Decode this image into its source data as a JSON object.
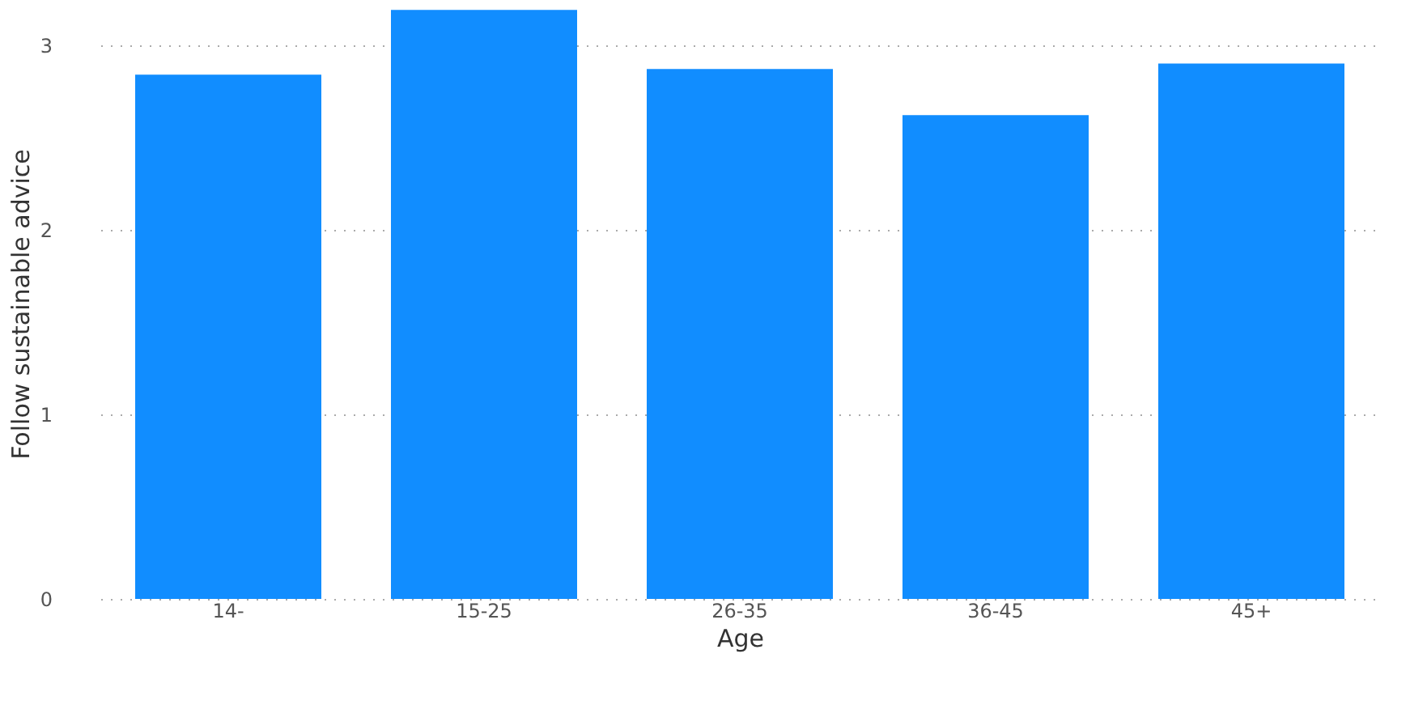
{
  "chart_data": {
    "type": "bar",
    "xlabel": "Age",
    "ylabel": "Follow sustainable advice",
    "categories": [
      "14-",
      "15-25",
      "26-35",
      "36-45",
      "45+"
    ],
    "values": [
      2.84,
      3.19,
      2.87,
      2.62,
      2.9
    ],
    "color": "#118dff",
    "ylim": [
      0,
      3.2
    ],
    "yticks": [
      0,
      1,
      2,
      3
    ],
    "grid": "y"
  }
}
